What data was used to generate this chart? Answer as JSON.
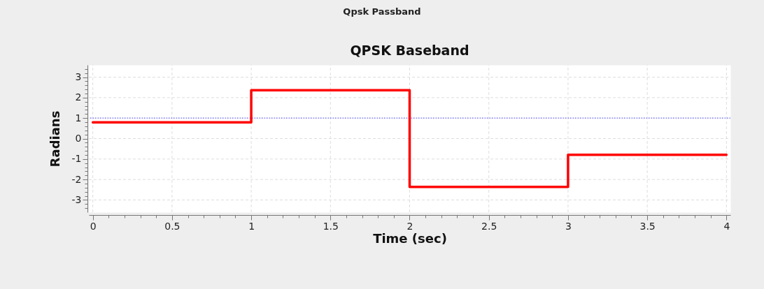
{
  "chart_data": {
    "type": "step",
    "title": "QPSK Baseband",
    "xlabel": "Time (sec)",
    "ylabel": "Radians",
    "annotations": [
      "Qpsk Passband"
    ],
    "x": [
      0,
      1,
      2,
      3,
      4
    ],
    "series": [
      {
        "color": "#ff0000",
        "values": [
          0.79,
          2.36,
          -2.36,
          -0.79,
          -0.79
        ]
      }
    ],
    "xlim": [
      -0.025,
      4.025
    ],
    "ylim": [
      -3.6,
      3.6
    ],
    "xticks": [
      0,
      {
        "value": 0.1,
        "label": null
      },
      {
        "value": 0.2,
        "label": null
      },
      {
        "value": 0.3,
        "label": null
      },
      {
        "value": 0.4,
        "label": null
      },
      0.5,
      {
        "value": 0.6,
        "label": null
      },
      {
        "value": 0.7,
        "label": null
      },
      {
        "value": 0.8,
        "label": null
      },
      {
        "value": 0.9,
        "label": null
      },
      1,
      {
        "value": 1.1,
        "label": null
      },
      {
        "value": 1.2,
        "label": null
      },
      {
        "value": 1.3,
        "label": null
      },
      {
        "value": 1.4,
        "label": null
      },
      1.5,
      {
        "value": 1.6,
        "label": null
      },
      {
        "value": 1.7,
        "label": null
      },
      {
        "value": 1.8,
        "label": null
      },
      {
        "value": 1.9,
        "label": null
      },
      2,
      {
        "value": 2.1,
        "label": null
      },
      {
        "value": 2.2,
        "label": null
      },
      {
        "value": 2.3,
        "label": null
      },
      {
        "value": 2.4,
        "label": null
      },
      2.5,
      {
        "value": 2.6,
        "label": null
      },
      {
        "value": 2.7,
        "label": null
      },
      {
        "value": 2.8,
        "label": null
      },
      {
        "value": 2.9,
        "label": null
      },
      3,
      {
        "value": 3.1,
        "label": null
      },
      {
        "value": 3.2,
        "label": null
      },
      {
        "value": 3.3,
        "label": null
      },
      {
        "value": 3.4,
        "label": null
      },
      3.5,
      {
        "value": 3.6,
        "label": null
      },
      {
        "value": 3.7,
        "label": null
      },
      {
        "value": 3.8,
        "label": null
      },
      {
        "value": 3.9,
        "label": null
      },
      4
    ],
    "yticks": [
      {
        "value": -3.4,
        "label": null
      },
      {
        "value": -3.2,
        "label": null
      },
      -3,
      {
        "value": -2.8,
        "label": null
      },
      {
        "value": -2.6,
        "label": null
      },
      {
        "value": -2.4,
        "label": null
      },
      {
        "value": -2.2,
        "label": null
      },
      -2,
      {
        "value": -1.8,
        "label": null
      },
      {
        "value": -1.6,
        "label": null
      },
      {
        "value": -1.4,
        "label": null
      },
      {
        "value": -1.2,
        "label": null
      },
      -1,
      {
        "value": -0.8,
        "label": null
      },
      {
        "value": -0.6,
        "label": null
      },
      {
        "value": -0.4,
        "label": null
      },
      {
        "value": -0.2,
        "label": null
      },
      0,
      {
        "value": 0.2,
        "label": null
      },
      {
        "value": 0.4,
        "label": null
      },
      {
        "value": 0.6,
        "label": null
      },
      {
        "value": 0.8,
        "label": null
      },
      1,
      {
        "value": 1.2,
        "label": null
      },
      {
        "value": 1.4,
        "label": null
      },
      {
        "value": 1.6,
        "label": null
      },
      {
        "value": 1.8,
        "label": null
      },
      2,
      {
        "value": 2.2,
        "label": null
      },
      {
        "value": 2.4,
        "label": null
      },
      {
        "value": 2.6,
        "label": null
      },
      {
        "value": 2.8,
        "label": null
      },
      3,
      {
        "value": 3.2,
        "label": null
      },
      {
        "value": 3.4,
        "label": null
      }
    ],
    "grid": true,
    "ref_lines": [
      {
        "axis": "y",
        "value": 1,
        "color": "#6b6bff",
        "line_style": "dotted"
      }
    ]
  }
}
